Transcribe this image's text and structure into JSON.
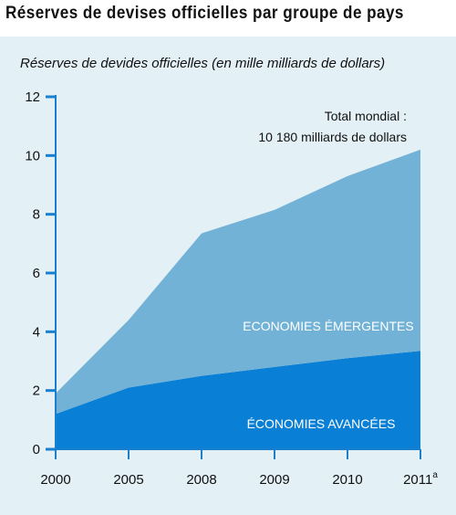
{
  "chart_data": {
    "type": "area",
    "stacked": true,
    "title": "Réserves de devises officielles par groupe de pays",
    "subtitle": "Réserves de devides officielles (en mille milliards de dollars)",
    "categories": [
      "2000",
      "2005",
      "2008",
      "2009",
      "2010",
      "2011"
    ],
    "x_tick_superscripts": [
      "",
      "",
      "",
      "",
      "",
      "a"
    ],
    "ylim": [
      0,
      12
    ],
    "yticks": [
      0,
      2,
      4,
      6,
      8,
      10,
      12
    ],
    "series": [
      {
        "name": "ÉCONOMIES AVANCÉES",
        "values": [
          1.2,
          2.1,
          2.5,
          2.8,
          3.1,
          3.35
        ],
        "color": "#0a7fd6"
      },
      {
        "name": "ECONOMIES ÉMERGENTES",
        "values": [
          0.7,
          2.3,
          4.85,
          5.35,
          6.2,
          6.85
        ],
        "color": "#72b2d6"
      }
    ],
    "annotation": [
      "Total mondial :",
      "10 180 milliards de dollars"
    ],
    "background_color": "#e3f0f6",
    "axis_color": "#1b7fcf"
  }
}
